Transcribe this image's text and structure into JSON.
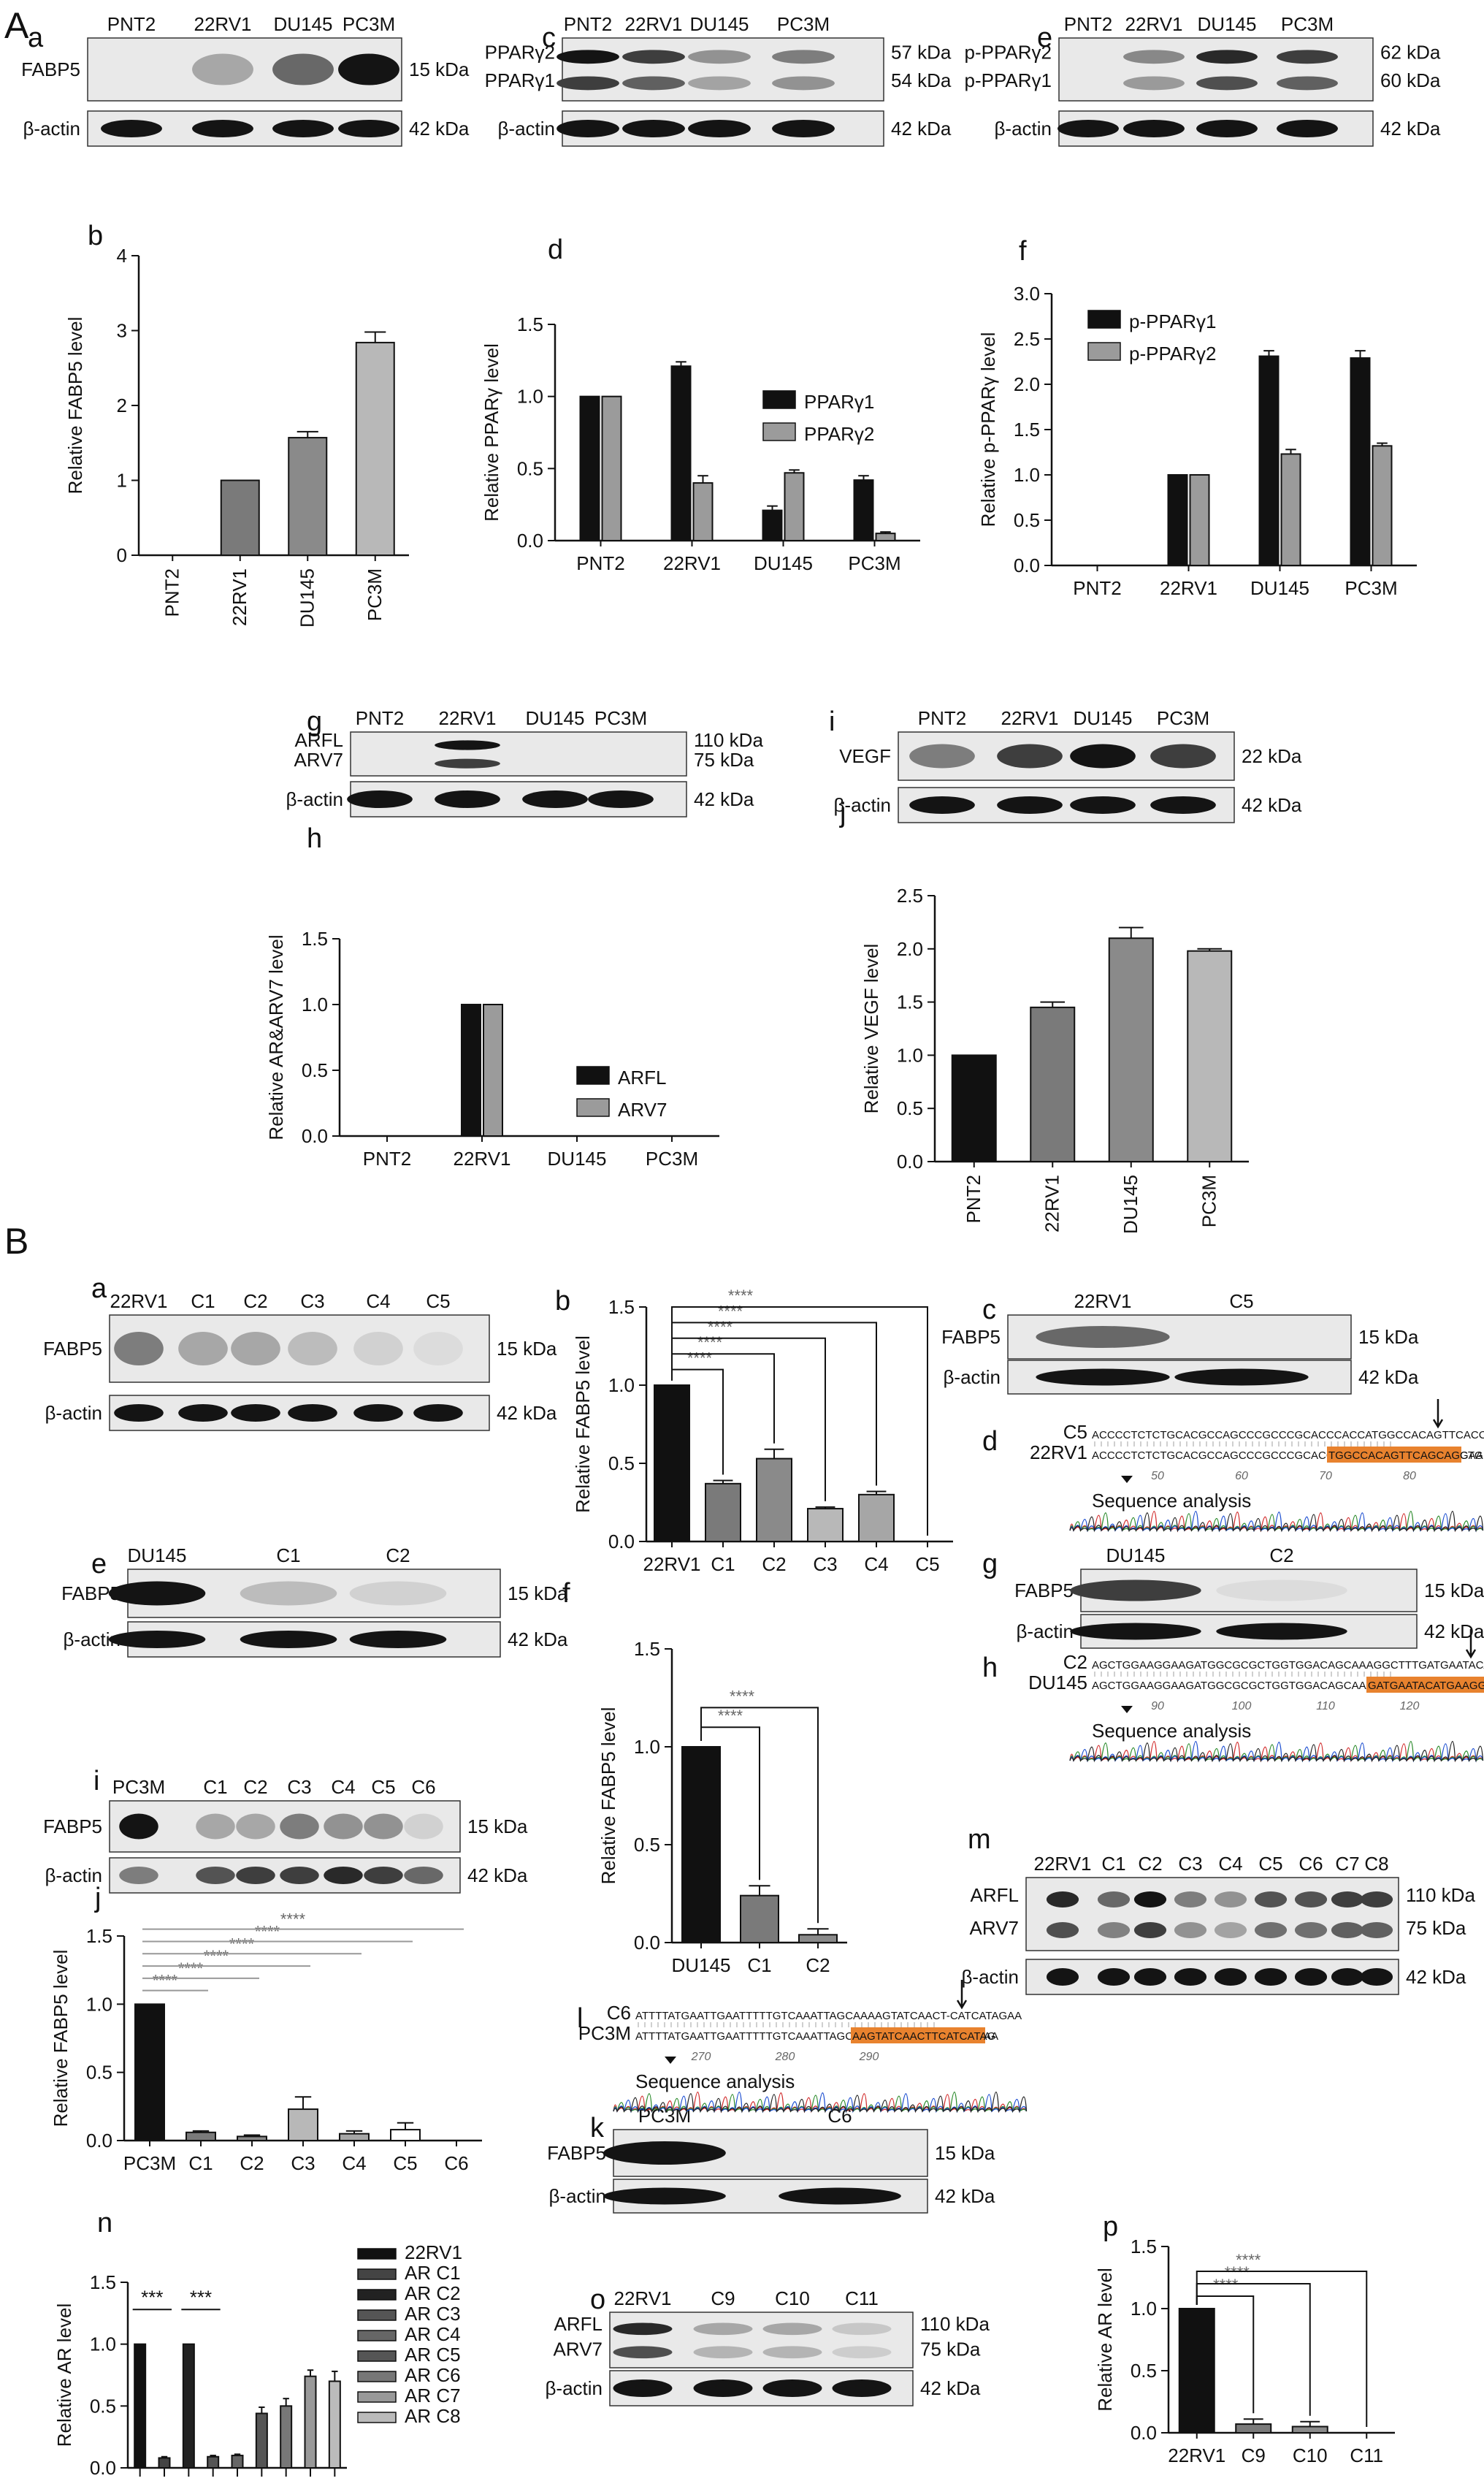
{
  "section_labels": {
    "A": "A",
    "B": "B"
  },
  "colors": {
    "black": "#111111",
    "dark_gray": "#555555",
    "mid_gray": "#7a7a7a",
    "light_gray": "#b8b8b8",
    "lighter_gray": "#d6d6d6",
    "highlight": "#e8822e"
  },
  "blots": [
    {
      "letter": "a",
      "lanes": [
        "PNT2",
        "22RV1",
        "DU145",
        "PC3M"
      ],
      "rows": [
        {
          "left": "FABP5",
          "right": "15 kDa",
          "band_level": [
            0.0,
            0.3,
            0.6,
            1.0
          ]
        },
        {
          "left": "β-actin",
          "right": "42 kDa",
          "band_level": [
            1,
            1,
            1,
            1
          ]
        }
      ]
    },
    {
      "letter": "c",
      "lanes": [
        "PNT2",
        "22RV1",
        "DU145",
        "PC3M"
      ],
      "rows": [
        {
          "left": "PPARγ2\nPPARγ1",
          "right": "57 kDa\n54 kDa",
          "band_level": [
            1.0,
            0.8,
            0.4,
            0.5
          ]
        },
        {
          "left": "β-actin",
          "right": "42 kDa",
          "band_level": [
            1,
            1,
            1,
            1
          ]
        }
      ]
    },
    {
      "letter": "e",
      "lanes": [
        "PNT2",
        "22RV1",
        "DU145",
        "PC3M"
      ],
      "rows": [
        {
          "left": "p-PPARγ2\np-PPARγ1",
          "right": "62 kDa\n60 kDa",
          "band_level": [
            0.0,
            0.45,
            0.9,
            0.8
          ]
        },
        {
          "left": "β-actin",
          "right": "42 kDa",
          "band_level": [
            1,
            1,
            1,
            1
          ]
        }
      ]
    },
    {
      "letter": "g",
      "lanes": [
        "PNT2",
        "22RV1",
        "DU145",
        "PC3M"
      ],
      "rows": [
        {
          "left": "ARFL\nARV7",
          "right": "110 kDa\n75 kDa",
          "band_level": [
            0.0,
            1.0,
            0.0,
            0.0
          ]
        },
        {
          "left": "β-actin",
          "right": "42 kDa",
          "band_level": [
            1,
            1,
            1,
            1
          ]
        }
      ]
    },
    {
      "letter": "i",
      "lanes": [
        "PNT2",
        "22RV1",
        "DU145",
        "PC3M"
      ],
      "rows": [
        {
          "left": "VEGF",
          "right": "22 kDa",
          "band_level": [
            0.5,
            0.8,
            1.0,
            0.8
          ]
        },
        {
          "left": "β-actin",
          "right": "42 kDa",
          "band_level": [
            1,
            1,
            1,
            1
          ]
        }
      ]
    },
    {
      "letter": "a",
      "lanes": [
        "22RV1",
        "C1",
        "C2",
        "C3",
        "C4",
        "C5"
      ],
      "rows": [
        {
          "left": "FABP5",
          "right": "15 kDa",
          "band_level": [
            0.5,
            0.3,
            0.3,
            0.2,
            0.1,
            0.05
          ]
        },
        {
          "left": "β-actin",
          "right": "42 kDa",
          "band_level": [
            1,
            1,
            1,
            1,
            1,
            1
          ]
        }
      ]
    },
    {
      "letter": "c",
      "lanes": [
        "22RV1",
        "C5"
      ],
      "rows": [
        {
          "left": "FABP5",
          "right": "15 kDa",
          "band_level": [
            0.6,
            0.0
          ]
        },
        {
          "left": "β-actin",
          "right": "42 kDa",
          "band_level": [
            1,
            1
          ]
        }
      ]
    },
    {
      "letter": "e",
      "lanes": [
        "DU145",
        "C1",
        "C2"
      ],
      "rows": [
        {
          "left": "FABP5",
          "right": "15 kDa",
          "band_level": [
            1.0,
            0.2,
            0.1
          ]
        },
        {
          "left": "β-actin",
          "right": "42 kDa",
          "band_level": [
            1,
            1,
            1
          ]
        }
      ]
    },
    {
      "letter": "g",
      "lanes": [
        "DU145",
        "C2"
      ],
      "rows": [
        {
          "left": "FABP5",
          "right": "15 kDa",
          "band_level": [
            0.8,
            0.05
          ]
        },
        {
          "left": "β-actin",
          "right": "42 kDa",
          "band_level": [
            1,
            1
          ]
        }
      ]
    },
    {
      "letter": "i",
      "lanes": [
        "PC3M",
        "C1",
        "C2",
        "C3",
        "C4",
        "C5",
        "C6"
      ],
      "rows": [
        {
          "left": "FABP5",
          "right": "15 kDa",
          "band_level": [
            1.0,
            0.3,
            0.3,
            0.5,
            0.4,
            0.4,
            0.1
          ]
        },
        {
          "left": "β-actin",
          "right": "42 kDa",
          "band_level": [
            0.5,
            0.7,
            0.8,
            0.8,
            0.9,
            0.8,
            0.6
          ]
        }
      ]
    },
    {
      "letter": "k",
      "lanes": [
        "PC3M",
        "C6"
      ],
      "rows": [
        {
          "left": "FABP5",
          "right": "15 kDa",
          "band_level": [
            1.0,
            0.0
          ]
        },
        {
          "left": "β-actin",
          "right": "42 kDa",
          "band_level": [
            1,
            1
          ]
        }
      ]
    },
    {
      "letter": "m",
      "lanes": [
        "22RV1",
        "C1",
        "C2",
        "C3",
        "C4",
        "C5",
        "C6",
        "C7",
        "C8"
      ],
      "rows": [
        {
          "left": "ARFL\nARV7",
          "right": "110 kDa\n75 kDa",
          "band_level": [
            0.9,
            0.6,
            1.0,
            0.5,
            0.4,
            0.7,
            0.7,
            0.8,
            0.8
          ]
        },
        {
          "left": "β-actin",
          "right": "42 kDa",
          "band_level": [
            1,
            1,
            1,
            1,
            1,
            1,
            1,
            1,
            1
          ]
        }
      ]
    },
    {
      "letter": "o",
      "lanes": [
        "22RV1",
        "C9",
        "C10",
        "C11"
      ],
      "rows": [
        {
          "left": "ARFL\nARV7",
          "right": "110 kDa\n75 kDa",
          "band_level": [
            0.9,
            0.3,
            0.3,
            0.15
          ]
        },
        {
          "left": "β-actin",
          "right": "42 kDa",
          "band_level": [
            1,
            1,
            1,
            1
          ]
        }
      ]
    }
  ],
  "sequences": [
    {
      "letter": "d",
      "top_name": "C5",
      "top_seq": "ACCCCTCTCTGCACGCCAGCCCGCCCGCACCCACCATGGCCACAGTTCACCAGCTGGAA",
      "bottom_name": "22RV1",
      "bottom_seq": "ACCCCTCTCTGCACGCCAGCCCGCCCGCACCCACCA",
      "bottom_highlight": "TGGCCACAGTTCAGCAGCTG",
      "bottom_tail": "GAA",
      "caption": "Sequence analysis",
      "ticks": [
        "50",
        "60",
        "70",
        "80"
      ]
    },
    {
      "letter": "h",
      "top_name": "C2",
      "top_seq": "AGCTGGAAGGAAGATGGCGCGCTGGTGGACAGCAAAGGCTTTGATGAATACATGAA----",
      "bottom_name": "DU145",
      "bottom_seq": "AGCTGGAAGGAAGATGGCGCGCTGGTGGACAGCAAAGGCTTT",
      "bottom_highlight": "GATGAATACATGAAGGAGC",
      "bottom_tail": "",
      "caption": "Sequence analysis",
      "ticks": [
        "90",
        "100",
        "110",
        "120"
      ]
    },
    {
      "letter": "l",
      "top_name": "C6",
      "top_seq": "ATTTTATGAATTGAATTTTTGTCAAATTAGCAAAAGTATCAACT-CATCATAGAA",
      "bottom_name": "PC3M",
      "bottom_seq": "ATTTTATGAATTGAATTTTTGTCAAATTAGCAA",
      "bottom_highlight": "AAGTATCAACTTCATCATAG",
      "bottom_tail": "AA",
      "caption": "Sequence analysis",
      "ticks": [
        "270",
        "280",
        "290"
      ]
    }
  ],
  "chart_data": [
    {
      "panel": "A-b",
      "type": "bar",
      "categories": [
        "PNT2",
        "22RV1",
        "DU145",
        "PC3M"
      ],
      "series": [
        {
          "values": [
            0,
            1.0,
            1.57,
            2.84
          ],
          "errors": [
            0,
            0,
            0.08,
            0.14
          ]
        }
      ],
      "ylabel": "Relative FABP5 level",
      "ylim": [
        0,
        4
      ],
      "yticks": [
        "0",
        "1",
        "2",
        "3",
        "4"
      ],
      "xlabel_rotated": true,
      "legend": []
    },
    {
      "panel": "A-d",
      "type": "bar",
      "categories": [
        "PNT2",
        "22RV1",
        "DU145",
        "PC3M"
      ],
      "series": [
        {
          "name": "PPARγ1",
          "values": [
            1.0,
            1.21,
            0.21,
            0.42
          ],
          "errors": [
            0,
            0.03,
            0.03,
            0.03
          ]
        },
        {
          "name": "PPARγ2",
          "values": [
            1.0,
            0.4,
            0.47,
            0.05
          ],
          "errors": [
            0,
            0.05,
            0.02,
            0.01
          ]
        }
      ],
      "ylabel": "Relative PPARγ level",
      "ylim": [
        0,
        1.5
      ],
      "yticks": [
        "0.0",
        "0.5",
        "1.0",
        "1.5"
      ],
      "legend": [
        "PPARγ1",
        "PPARγ2"
      ],
      "legend_position": "center-right"
    },
    {
      "panel": "A-f",
      "type": "bar",
      "categories": [
        "PNT2",
        "22RV1",
        "DU145",
        "PC3M"
      ],
      "series": [
        {
          "name": "p-PPARγ1",
          "values": [
            0,
            1.0,
            2.31,
            2.29
          ],
          "errors": [
            0,
            0,
            0.06,
            0.08
          ]
        },
        {
          "name": "p-PPARγ2",
          "values": [
            0,
            1.0,
            1.23,
            1.32
          ],
          "errors": [
            0,
            0,
            0.05,
            0.03
          ]
        }
      ],
      "ylabel": "Relative p-PPARγ level",
      "ylim": [
        0,
        3.0
      ],
      "yticks": [
        "0.0",
        "0.5",
        "1.0",
        "1.5",
        "2.0",
        "2.5",
        "3.0"
      ],
      "legend": [
        "p-PPARγ1",
        "p-PPARγ2"
      ],
      "legend_position": "top-left"
    },
    {
      "panel": "A-h",
      "type": "bar",
      "categories": [
        "PNT2",
        "22RV1",
        "DU145",
        "PC3M"
      ],
      "series": [
        {
          "name": "ARFL",
          "values": [
            0,
            1.0,
            0,
            0
          ],
          "errors": [
            0,
            0,
            0,
            0
          ]
        },
        {
          "name": "ARV7",
          "values": [
            0,
            1.0,
            0,
            0
          ],
          "errors": [
            0,
            0,
            0,
            0
          ]
        }
      ],
      "ylabel": "Relative AR&ARV7 level",
      "ylim": [
        0,
        1.5
      ],
      "yticks": [
        "0.0",
        "0.5",
        "1.0",
        "1.5"
      ],
      "legend": [
        "ARFL",
        "ARV7"
      ],
      "legend_position": "center-right"
    },
    {
      "panel": "A-j",
      "type": "bar",
      "categories": [
        "PNT2",
        "22RV1",
        "DU145",
        "PC3M"
      ],
      "series": [
        {
          "values": [
            1.0,
            1.45,
            2.1,
            1.98
          ],
          "errors": [
            0,
            0.05,
            0.1,
            0.02
          ]
        }
      ],
      "ylabel": "Relative VEGF level",
      "ylim": [
        0,
        2.5
      ],
      "yticks": [
        "0.0",
        "0.5",
        "1.0",
        "1.5",
        "2.0",
        "2.5"
      ],
      "xlabel_rotated": true,
      "legend": []
    },
    {
      "panel": "B-b",
      "type": "bar",
      "categories": [
        "22RV1",
        "C1",
        "C2",
        "C3",
        "C4",
        "C5"
      ],
      "series": [
        {
          "values": [
            1.0,
            0.37,
            0.53,
            0.21,
            0.3,
            0
          ],
          "errors": [
            0,
            0.02,
            0.06,
            0.01,
            0.02,
            0
          ]
        }
      ],
      "ylabel": "Relative FABP5 level",
      "ylim": [
        0,
        1.5
      ],
      "yticks": [
        "0.0",
        "0.5",
        "1.0",
        "1.5"
      ],
      "significance": [
        {
          "from": "22RV1",
          "to": "C1",
          "label": "****"
        },
        {
          "from": "22RV1",
          "to": "C2",
          "label": "****"
        },
        {
          "from": "22RV1",
          "to": "C3",
          "label": "****"
        },
        {
          "from": "22RV1",
          "to": "C4",
          "label": "****"
        },
        {
          "from": "22RV1",
          "to": "C5",
          "label": "****"
        }
      ],
      "legend": []
    },
    {
      "panel": "B-f",
      "type": "bar",
      "categories": [
        "DU145",
        "C1",
        "C2"
      ],
      "series": [
        {
          "values": [
            1.0,
            0.24,
            0.04
          ],
          "errors": [
            0,
            0.05,
            0.03
          ]
        }
      ],
      "ylabel": "Relative FABP5 level",
      "ylim": [
        0,
        1.5
      ],
      "yticks": [
        "0.0",
        "0.5",
        "1.0",
        "1.5"
      ],
      "significance": [
        {
          "from": "DU145",
          "to": "C1",
          "label": "****"
        },
        {
          "from": "DU145",
          "to": "C2",
          "label": "****"
        }
      ],
      "legend": []
    },
    {
      "panel": "B-j",
      "type": "bar",
      "categories": [
        "PC3M",
        "C1",
        "C2",
        "C3",
        "C4",
        "C5",
        "C6"
      ],
      "series": [
        {
          "values": [
            1.0,
            0.06,
            0.03,
            0.23,
            0.05,
            0.08,
            0
          ],
          "errors": [
            0,
            0.01,
            0.01,
            0.09,
            0.02,
            0.05,
            0
          ]
        }
      ],
      "ylabel": "Relative FABP5 level",
      "ylim": [
        0,
        1.5
      ],
      "yticks": [
        "0.0",
        "0.5",
        "1.0",
        "1.5"
      ],
      "significance": [
        {
          "from": "PC3M",
          "to": "C1",
          "label": "****"
        },
        {
          "from": "PC3M",
          "to": "C2",
          "label": "****"
        },
        {
          "from": "PC3M",
          "to": "C3",
          "label": "****"
        },
        {
          "from": "PC3M",
          "to": "C4",
          "label": "****"
        },
        {
          "from": "PC3M",
          "to": "C5",
          "label": "****"
        },
        {
          "from": "PC3M",
          "to": "C6",
          "label": "****"
        }
      ],
      "legend": []
    },
    {
      "panel": "B-n",
      "type": "bar",
      "categories": [
        "22RV1",
        "AR C1",
        "AR C2",
        "AR C3",
        "AR C4",
        "AR C5",
        "AR C6",
        "AR C7",
        "AR C8"
      ],
      "series": [
        {
          "values": [
            1.0,
            0.08,
            1.0,
            0.09,
            0.1,
            0.44,
            0.5,
            0.74,
            0.7
          ],
          "errors": [
            0,
            0.01,
            0,
            0.01,
            0.01,
            0.05,
            0.06,
            0.05,
            0.08
          ]
        }
      ],
      "ylabel": "Relative AR level",
      "ylim": [
        0,
        1.5
      ],
      "yticks": [
        "0.0",
        "0.5",
        "1.0",
        "1.5"
      ],
      "significance": [
        {
          "from": "22RV1",
          "to": "AR C1",
          "label": "***"
        },
        {
          "from": "AR C2",
          "to": "AR C3",
          "label": "***"
        }
      ],
      "legend": [
        "22RV1",
        "AR C1",
        "AR C2",
        "AR C3",
        "AR C4",
        "AR C5",
        "AR C6",
        "AR C7",
        "AR C8"
      ],
      "legend_position": "right"
    },
    {
      "panel": "B-p",
      "type": "bar",
      "categories": [
        "22RV1",
        "C9",
        "C10",
        "C11"
      ],
      "series": [
        {
          "values": [
            1.0,
            0.07,
            0.05,
            0
          ],
          "errors": [
            0,
            0.04,
            0.04,
            0
          ]
        }
      ],
      "ylabel": "Relative AR level",
      "ylim": [
        0,
        1.5
      ],
      "yticks": [
        "0.0",
        "0.5",
        "1.0",
        "1.5"
      ],
      "significance": [
        {
          "from": "22RV1",
          "to": "C9",
          "label": "****"
        },
        {
          "from": "22RV1",
          "to": "C10",
          "label": "****"
        },
        {
          "from": "22RV1",
          "to": "C11",
          "label": "****"
        }
      ],
      "legend": []
    }
  ]
}
